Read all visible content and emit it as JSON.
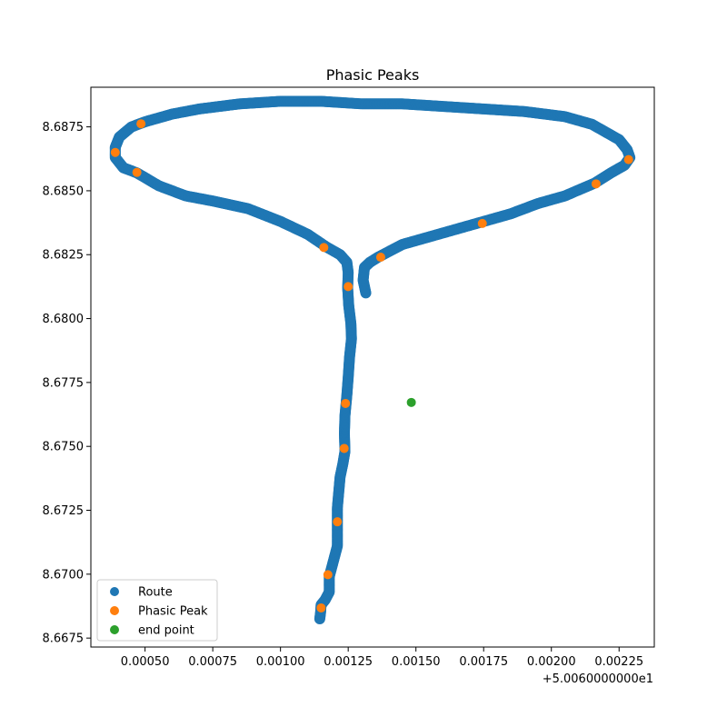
{
  "chart_data": {
    "type": "scatter",
    "title": "Phasic Peaks",
    "xlabel": "",
    "ylabel": "",
    "x_offset_text": "+5.0060000000e1",
    "xlim": [
      0.0003,
      0.00238
    ],
    "ylim": [
      8.66715,
      8.68905
    ],
    "xticks": [
      0.0005,
      0.00075,
      0.001,
      0.00125,
      0.0015,
      0.00175,
      0.002,
      0.00225
    ],
    "xtick_labels": [
      "0.00050",
      "0.00075",
      "0.00100",
      "0.00125",
      "0.00150",
      "0.00175",
      "0.00200",
      "0.00225"
    ],
    "yticks": [
      8.6675,
      8.67,
      8.6725,
      8.675,
      8.6775,
      8.68,
      8.6825,
      8.685,
      8.6875
    ],
    "ytick_labels": [
      "8.6675",
      "8.6700",
      "8.6725",
      "8.6750",
      "8.6775",
      "8.6800",
      "8.6825",
      "8.6850",
      "8.6875"
    ],
    "grid": false,
    "legend_position": "lower-left",
    "series": [
      {
        "name": "Route",
        "color": "#1f77b4",
        "points": [
          [
            0.001315,
            8.681
          ],
          [
            0.001305,
            8.6815
          ],
          [
            0.00131,
            8.682
          ],
          [
            0.00133,
            8.6822
          ],
          [
            0.00136,
            8.6824
          ],
          [
            0.00145,
            8.6829
          ],
          [
            0.00155,
            8.6832
          ],
          [
            0.00165,
            8.6835
          ],
          [
            0.00175,
            8.6838
          ],
          [
            0.00185,
            8.6841
          ],
          [
            0.00195,
            8.6845
          ],
          [
            0.00205,
            8.6848
          ],
          [
            0.00216,
            8.6853
          ],
          [
            0.00222,
            8.6857
          ],
          [
            0.00227,
            8.686
          ],
          [
            0.00229,
            8.6863
          ],
          [
            0.00228,
            8.6866
          ],
          [
            0.00225,
            8.687
          ],
          [
            0.00215,
            8.6876
          ],
          [
            0.00205,
            8.6879
          ],
          [
            0.0019,
            8.6881
          ],
          [
            0.00175,
            8.6882
          ],
          [
            0.0016,
            8.6883
          ],
          [
            0.00145,
            8.6884
          ],
          [
            0.0013,
            8.6884
          ],
          [
            0.00115,
            8.6885
          ],
          [
            0.001,
            8.6885
          ],
          [
            0.00085,
            8.6884
          ],
          [
            0.0007,
            8.6882
          ],
          [
            0.0006,
            8.688
          ],
          [
            0.0005,
            8.6877
          ],
          [
            0.00045,
            8.6875
          ],
          [
            0.000405,
            8.6871
          ],
          [
            0.00039,
            8.6867
          ],
          [
            0.00039,
            8.6863
          ],
          [
            0.00042,
            8.6859
          ],
          [
            0.00047,
            8.6857
          ],
          [
            0.00055,
            8.6852
          ],
          [
            0.00065,
            8.6848
          ],
          [
            0.00075,
            8.6846
          ],
          [
            0.00088,
            8.6843
          ],
          [
            0.001,
            8.6838
          ],
          [
            0.0011,
            8.6833
          ],
          [
            0.00117,
            8.6828
          ],
          [
            0.00122,
            8.6825
          ],
          [
            0.001245,
            8.6822
          ],
          [
            0.00125,
            8.6818
          ],
          [
            0.001248,
            8.6812
          ],
          [
            0.001252,
            8.6805
          ],
          [
            0.00126,
            8.6798
          ],
          [
            0.001262,
            8.6792
          ],
          [
            0.001255,
            8.6785
          ],
          [
            0.00125,
            8.6777
          ],
          [
            0.001245,
            8.677
          ],
          [
            0.001238,
            8.6762
          ],
          [
            0.001236,
            8.6755
          ],
          [
            0.001238,
            8.6748
          ],
          [
            0.00123,
            8.6743
          ],
          [
            0.00122,
            8.6738
          ],
          [
            0.001215,
            8.6732
          ],
          [
            0.00121,
            8.6726
          ],
          [
            0.00121,
            8.672
          ],
          [
            0.00121,
            8.6715
          ],
          [
            0.00121,
            8.6711
          ],
          [
            0.0012,
            8.6707
          ],
          [
            0.00119,
            8.6703
          ],
          [
            0.00118,
            8.6699
          ],
          [
            0.00118,
            8.6696
          ],
          [
            0.00118,
            8.6693
          ],
          [
            0.001165,
            8.669
          ],
          [
            0.00115,
            8.6688
          ],
          [
            0.001148,
            8.6685
          ],
          [
            0.001145,
            8.66825
          ]
        ]
      },
      {
        "name": "Phasic Peak",
        "color": "#ff7f0e",
        "points": [
          [
            0.000485,
            8.68762
          ],
          [
            0.00039,
            8.6865
          ],
          [
            0.00047,
            8.68572
          ],
          [
            0.00116,
            8.68278
          ],
          [
            0.00125,
            8.68125
          ],
          [
            0.00137,
            8.6824
          ],
          [
            0.001745,
            8.68372
          ],
          [
            0.002165,
            8.68527
          ],
          [
            0.002285,
            8.68622
          ],
          [
            0.00124,
            8.67668
          ],
          [
            0.001235,
            8.67492
          ],
          [
            0.00121,
            8.67205
          ],
          [
            0.001175,
            8.66998
          ],
          [
            0.00115,
            8.66868
          ]
        ]
      },
      {
        "name": "end point",
        "color": "#2ca02c",
        "points": [
          [
            0.001483,
            8.67672
          ]
        ]
      }
    ]
  }
}
